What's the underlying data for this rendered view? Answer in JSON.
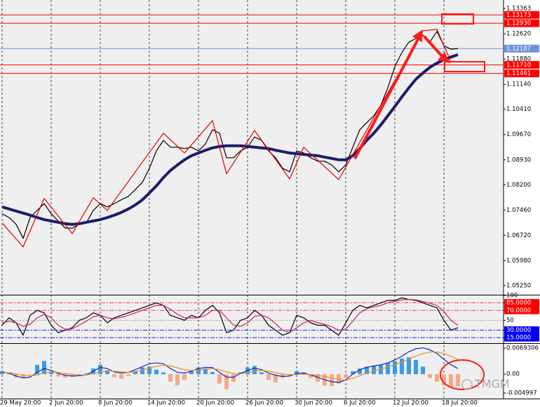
{
  "chart_data": [
    {
      "type": "line",
      "categories": [
        "29 May 20:00",
        null,
        null,
        null,
        null,
        null,
        null,
        "2 Jun 20:00",
        null,
        null,
        null,
        null,
        null,
        null,
        "8 Jun 20:00",
        null,
        null,
        null,
        null,
        null,
        null,
        "14 Jun 20:00",
        null,
        null,
        null,
        null,
        null,
        null,
        "20 Jun 20:00",
        null,
        null,
        null,
        null,
        null,
        null,
        "26 Jun 20:00",
        null,
        null,
        null,
        null,
        null,
        null,
        "30 Jun 20:00",
        null,
        null,
        null,
        null,
        null,
        null,
        "6 Jul 20:00",
        null,
        null,
        null,
        null,
        null,
        null,
        "12 Jul 20:00",
        null,
        null,
        null,
        null,
        null,
        null,
        "18 Jul 20:00",
        null,
        null
      ],
      "ylim": [
        1.0498,
        1.1361
      ],
      "yticks": [
        1.13363,
        {
          "value": 1.1262,
          "label": "1.12620"
        },
        {
          "value": 1.1188,
          "label": "1.11880"
        },
        {
          "value": 1.1114,
          "label": "1.11140"
        },
        {
          "value": 1.1041,
          "label": "1.10410"
        },
        {
          "value": 1.0967,
          "label": "1.09670"
        },
        {
          "value": 1.0893,
          "label": "1.08930"
        },
        {
          "value": 1.082,
          "label": "1.08200"
        },
        {
          "value": 1.0746,
          "label": "1.07460"
        },
        {
          "value": 1.0672,
          "label": "1.06720"
        },
        {
          "value": 1.0598,
          "label": "1.05980"
        },
        {
          "value": 1.0525,
          "label": "1.05250"
        }
      ],
      "grid": true,
      "levels": [
        {
          "value": 1.13173,
          "color": "#ff0000"
        },
        {
          "value": 1.1293,
          "label": "1.12930",
          "color": "#ff0000"
        },
        {
          "value": 1.12187,
          "color": "#7090d8"
        },
        {
          "value": 1.1171,
          "label": "1.11710",
          "color": "#ff0000"
        },
        {
          "value": 1.11461,
          "color": "#ff0000"
        }
      ],
      "series": [
        {
          "color": "#000000",
          "values": [
            1.0735,
            1.0724,
            1.0704,
            1.0663,
            1.0724,
            1.0745,
            1.0765,
            1.0735,
            1.0714,
            1.0693,
            1.0693,
            1.0704,
            1.0708,
            1.0745,
            1.0765,
            1.0755,
            1.0765,
            1.0776,
            1.0786,
            1.0806,
            1.0827,
            1.0868,
            1.0919,
            1.095,
            1.093,
            1.093,
            1.0926,
            1.093,
            1.0919,
            1.094,
            1.0981,
            1.0971,
            1.0899,
            1.0899,
            1.0919,
            1.093,
            1.096,
            1.095,
            1.0919,
            1.0899,
            1.0868,
            1.0858,
            1.0919,
            1.0913,
            1.0899,
            1.0889,
            1.0889,
            1.0878,
            1.0858,
            1.0878,
            1.093,
            1.0981,
            1.1002,
            1.1022,
            1.1053,
            1.1104,
            1.1166,
            1.1207,
            1.1238,
            1.1248,
            1.1258,
            1.1238,
            1.1269,
            1.1227,
            1.1217,
            1.1219
          ]
        },
        {
          "color": "#1c1c6a",
          "values": [
            1.0755,
            1.0749,
            1.0743,
            1.0737,
            1.0731,
            1.0724,
            1.0718,
            1.0714,
            1.071,
            1.0706,
            1.0704,
            1.0706,
            1.071,
            1.0714,
            1.0718,
            1.0724,
            1.0731,
            1.0739,
            1.0749,
            1.0761,
            1.0776,
            1.0796,
            1.0817,
            1.0841,
            1.0862,
            1.0878,
            1.0893,
            1.0905,
            1.0913,
            1.0921,
            1.0928,
            1.0932,
            1.0934,
            1.0934,
            1.0934,
            1.0932,
            1.093,
            1.0928,
            1.0926,
            1.0921,
            1.0917,
            1.0913,
            1.0911,
            1.0909,
            1.0907,
            1.0905,
            1.0901,
            1.0897,
            1.0893,
            1.0893,
            1.0905,
            1.0926,
            1.095,
            1.0971,
            1.0995,
            1.1022,
            1.1049,
            1.1077,
            1.1104,
            1.1129,
            1.1147,
            1.1164,
            1.1176,
            1.1186,
            1.1194,
            1.1201
          ]
        },
        {
          "color": "#e00000",
          "x": [
            0,
            3,
            6,
            10,
            13,
            15,
            23,
            26,
            30,
            32,
            36,
            41,
            43,
            48,
            60,
            62,
            64
          ],
          "values": [
            1.0708,
            1.0638,
            1.078,
            1.0677,
            1.0782,
            1.0745,
            1.0971,
            1.0913,
            1.1008,
            1.0852,
            1.0979,
            1.0837,
            1.093,
            1.0835,
            1.1271,
            1.1275,
            1.118
          ]
        }
      ]
    },
    {
      "type": "line",
      "ylim": [
        4,
        100
      ],
      "yticks": [
        100,
        {
          "value": 85,
          "label": "85.0000"
        },
        {
          "value": 70,
          "label": "70.0000"
        },
        50,
        {
          "value": 30,
          "label": "30.0000"
        },
        {
          "value": 15,
          "label": "15.0000"
        }
      ],
      "tick_colors": [
        "#000000",
        "#ff0000",
        "#ff0000",
        "#909090",
        "#0000ff",
        "#0000ff"
      ],
      "series": [
        {
          "color": "#000000",
          "values": [
            40,
            55,
            45,
            20,
            60,
            70,
            65,
            40,
            25,
            30,
            35,
            50,
            55,
            65,
            60,
            45,
            55,
            60,
            65,
            70,
            75,
            80,
            85,
            80,
            60,
            55,
            50,
            60,
            55,
            70,
            80,
            65,
            25,
            30,
            50,
            55,
            70,
            60,
            40,
            30,
            20,
            25,
            60,
            55,
            45,
            40,
            40,
            30,
            20,
            45,
            70,
            80,
            75,
            80,
            85,
            90,
            90,
            95,
            92,
            90,
            85,
            80,
            75,
            50,
            30,
            35
          ]
        },
        {
          "color": "#d02060",
          "values": [
            45,
            48,
            45,
            38,
            42,
            55,
            62,
            55,
            40,
            32,
            33,
            40,
            48,
            57,
            60,
            55,
            53,
            56,
            60,
            65,
            70,
            75,
            80,
            80,
            72,
            62,
            55,
            55,
            55,
            60,
            70,
            70,
            55,
            40,
            38,
            45,
            58,
            60,
            55,
            43,
            30,
            25,
            35,
            45,
            50,
            45,
            42,
            37,
            30,
            32,
            48,
            65,
            73,
            77,
            80,
            85,
            88,
            91,
            92,
            91,
            88,
            84,
            80,
            68,
            50,
            40
          ]
        }
      ]
    },
    {
      "type": "combo",
      "ylim": [
        -0.0065,
        0.0079
      ],
      "yticks": [
        0.0069306,
        {
          "value": 0,
          "label": "0.00"
        },
        -0.004997
      ],
      "color_up": "#3a9be8",
      "color_down": "#f4a888",
      "values": [
        0.0008,
        0.0005,
        -0.0008,
        -0.001,
        -0.0002,
        0.0025,
        0.0035,
        0.0005,
        -0.0006,
        -0.0009,
        -0.0007,
        -0.0003,
        0.0002,
        0.0015,
        0.0025,
        0.001,
        -0.0008,
        -0.0012,
        -0.0005,
        0.0008,
        0.0018,
        0.002,
        0.0012,
        0.0005,
        -0.002,
        -0.003,
        -0.0015,
        0.0008,
        0.0018,
        0.0015,
        0.0006,
        -0.0025,
        -0.004,
        -0.002,
        0.0005,
        0.0018,
        0.0022,
        0.0005,
        -0.0015,
        -0.0022,
        -0.001,
        -0.0005,
        0.0008,
        0.0005,
        -0.001,
        -0.002,
        -0.003,
        -0.0032,
        -0.0025,
        -0.001,
        0.0008,
        0.0015,
        0.002,
        0.0022,
        0.0025,
        0.003,
        0.0035,
        0.0042,
        0.0045,
        0.0038,
        0.002,
        -0.001,
        -0.002,
        -0.003,
        -0.0035,
        -0.0032
      ],
      "series": [
        {
          "color": "#0a2bb8",
          "values": [
            0.0005,
            0.0003,
            -0.0005,
            -0.001,
            -0.0008,
            0.0005,
            0.0015,
            0.001,
            0.0002,
            -0.0003,
            -0.0005,
            -0.0004,
            -0.0002,
            0.0008,
            0.0018,
            0.0015,
            0.0006,
            0.0003,
            0.0005,
            0.0012,
            0.002,
            0.0028,
            0.003,
            0.0028,
            0.0015,
            0.0005,
            0.0003,
            0.0008,
            0.0015,
            0.0018,
            0.0018,
            0.0005,
            -0.0008,
            -0.0008,
            0.0002,
            0.001,
            0.0016,
            0.0012,
            0.0003,
            -0.0003,
            -0.0006,
            -0.0005,
            0.0002,
            0.0003,
            -0.0002,
            -0.0008,
            -0.0015,
            -0.002,
            -0.0022,
            -0.0015,
            0,
            0.0012,
            0.0018,
            0.0022,
            0.0025,
            0.003,
            0.0038,
            0.0048,
            0.006,
            0.0068,
            0.007,
            0.0065,
            0.0055,
            0.004,
            0.0025,
            0.0015
          ]
        },
        {
          "color": "#f08a20",
          "values": [
            0.0003,
            0.0004,
            0.0001,
            -0.0003,
            -0.0005,
            -0.0002,
            0.0003,
            0.0006,
            0.0005,
            0.0002,
            0,
            -0.0002,
            -0.0002,
            0.0001,
            0.0006,
            0.0009,
            0.0008,
            0.0006,
            0.0005,
            0.0007,
            0.0011,
            0.0016,
            0.0021,
            0.0024,
            0.0022,
            0.0017,
            0.0012,
            0.001,
            0.0011,
            0.0013,
            0.0015,
            0.0012,
            0.0006,
            0.0002,
            0.0001,
            0.0004,
            0.0008,
            0.001,
            0.0008,
            0.0004,
            0.0001,
            -0.0001,
            -0.0001,
            0,
            -0.0001,
            -0.0003,
            -0.0006,
            -0.001,
            -0.0014,
            -0.0016,
            -0.0011,
            -0.0004,
            0.0003,
            0.0009,
            0.0014,
            0.0019,
            0.0025,
            0.0032,
            0.004,
            0.0048,
            0.0055,
            0.0059,
            0.0059,
            0.0055,
            0.0048,
            0.004
          ]
        }
      ]
    }
  ],
  "watermark": "TMGM"
}
